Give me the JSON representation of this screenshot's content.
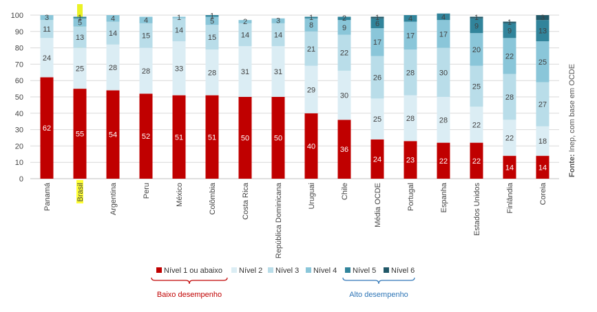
{
  "chart_data": {
    "type": "bar",
    "stacked": true,
    "title": "",
    "xlabel": "",
    "ylabel": "",
    "ylim": [
      0,
      100
    ],
    "yticks": [
      0,
      10,
      20,
      30,
      40,
      50,
      60,
      70,
      80,
      90,
      100
    ],
    "categories": [
      "Panamá",
      "Brasil",
      "Argentina",
      "Peru",
      "México",
      "Colômbia",
      "Costa Rica",
      "República Dominicana",
      "Uruguai",
      "Chile",
      "Média OCDE",
      "Portugal",
      "Espanha",
      "Estados Unidos",
      "Finlândia",
      "Coreia"
    ],
    "highlight_category": "Brasil",
    "series": [
      {
        "name": "Nível 1 ou abaixo",
        "color": "#c00000",
        "label_color": "#ffffff",
        "values": [
          62,
          55,
          54,
          52,
          51,
          51,
          50,
          50,
          40,
          36,
          24,
          23,
          22,
          22,
          14,
          14
        ]
      },
      {
        "name": "Nível 2",
        "color": "#dbedf4",
        "label_color": "#404040",
        "values": [
          24,
          25,
          28,
          28,
          33,
          28,
          31,
          31,
          29,
          30,
          25,
          28,
          28,
          22,
          22,
          18
        ]
      },
      {
        "name": "Nível 3",
        "color": "#b9dde9",
        "label_color": "#404040",
        "values": [
          11,
          13,
          14,
          15,
          14,
          15,
          14,
          14,
          21,
          22,
          26,
          28,
          30,
          25,
          28,
          27
        ]
      },
      {
        "name": "Nível 4",
        "color": "#8ac6d9",
        "label_color": "#404040",
        "values": [
          3,
          5,
          4,
          4,
          1,
          5,
          2,
          3,
          8,
          9,
          17,
          17,
          17,
          20,
          22,
          25
        ]
      },
      {
        "name": "Nível 5",
        "color": "#31849b",
        "label_color": "#404040",
        "values": [
          0,
          1,
          0,
          0,
          0,
          1,
          0,
          0,
          1,
          2,
          6,
          4,
          4,
          9,
          9,
          13
        ]
      },
      {
        "name": "Nível 6",
        "color": "#215868",
        "label_color": "#404040",
        "values": [
          0,
          0,
          0,
          0,
          0,
          0,
          0,
          0,
          0,
          0,
          1,
          0,
          0,
          1,
          1,
          3
        ]
      }
    ],
    "legend_position": "bottom",
    "groups": [
      {
        "label": "Baixo desempenho",
        "color": "#c00000"
      },
      {
        "label": "Alto desempenho",
        "color": "#2e75b6"
      }
    ],
    "source_prefix": "Fonte:",
    "source_text": " Inep, com base em OCDE"
  }
}
